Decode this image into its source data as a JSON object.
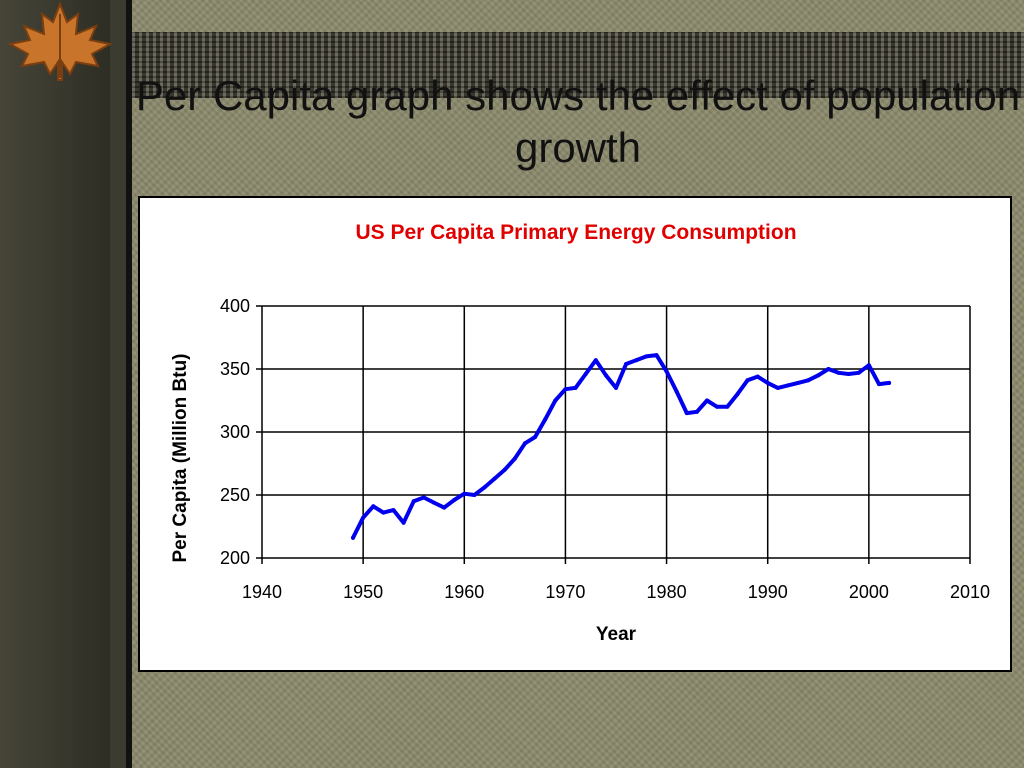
{
  "slide": {
    "title": "Per Capita graph shows the effect of population growth",
    "colors": {
      "background": "#8c8a6c",
      "band": "#3c3b30",
      "series": "#0000ee",
      "chart_title": "#e00000"
    },
    "logo_icon": "maple-leaf-icon"
  },
  "chart_data": {
    "type": "line",
    "title": "US Per Capita Primary Energy Consumption",
    "xlabel": "Year",
    "ylabel": "Per Capita (Million Btu)",
    "xlim": [
      1940,
      2010
    ],
    "ylim": [
      200,
      400
    ],
    "xticks": [
      1940,
      1950,
      1960,
      1970,
      1980,
      1990,
      2000,
      2010
    ],
    "yticks": [
      200,
      250,
      300,
      350,
      400
    ],
    "grid": true,
    "legend": "none",
    "series": [
      {
        "x": [
          1949,
          1950,
          1951,
          1952,
          1953,
          1954,
          1955,
          1956,
          1957,
          1958,
          1959,
          1960,
          1961,
          1962,
          1963,
          1964,
          1965,
          1966,
          1967,
          1968,
          1969,
          1970,
          1971,
          1972,
          1973,
          1974,
          1975,
          1976,
          1977,
          1978,
          1979,
          1980,
          1981,
          1982,
          1983,
          1984,
          1985,
          1986,
          1987,
          1988,
          1989,
          1990,
          1991,
          1992,
          1993,
          1994,
          1995,
          1996,
          1997,
          1998,
          1999,
          2000,
          2001,
          2002
        ],
        "values": [
          216,
          232,
          241,
          236,
          238,
          228,
          245,
          248,
          244,
          240,
          246,
          251,
          250,
          256,
          263,
          270,
          279,
          291,
          296,
          310,
          325,
          334,
          335,
          346,
          357,
          345,
          335,
          354,
          357,
          360,
          361,
          348,
          332,
          315,
          316,
          325,
          320,
          320,
          330,
          341,
          344,
          339,
          335,
          337,
          339,
          341,
          345,
          350,
          347,
          346,
          347,
          353,
          338,
          339
        ]
      }
    ]
  }
}
